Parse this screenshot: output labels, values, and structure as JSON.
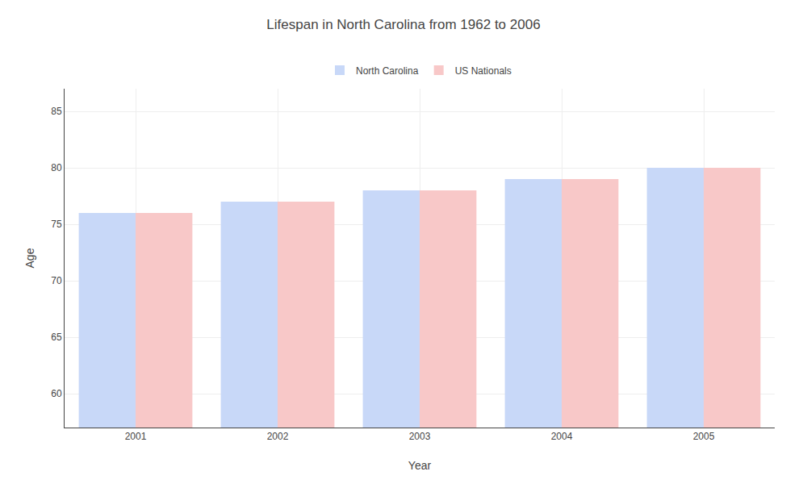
{
  "chart_data": {
    "type": "bar",
    "title": "Lifespan in North Carolina from 1962 to 2006",
    "xlabel": "Year",
    "ylabel": "Age",
    "categories": [
      "2001",
      "2002",
      "2003",
      "2004",
      "2005"
    ],
    "series": [
      {
        "name": "North Carolina",
        "color": "#c8d8f8",
        "values": [
          76,
          77,
          78,
          79,
          80
        ]
      },
      {
        "name": "US Nationals",
        "color": "#f8c8c8",
        "values": [
          76,
          77,
          78,
          79,
          80
        ]
      }
    ],
    "ylim": [
      57,
      87
    ],
    "yticks": [
      60,
      65,
      70,
      75,
      80,
      85
    ],
    "grid": true,
    "legend": "top"
  }
}
